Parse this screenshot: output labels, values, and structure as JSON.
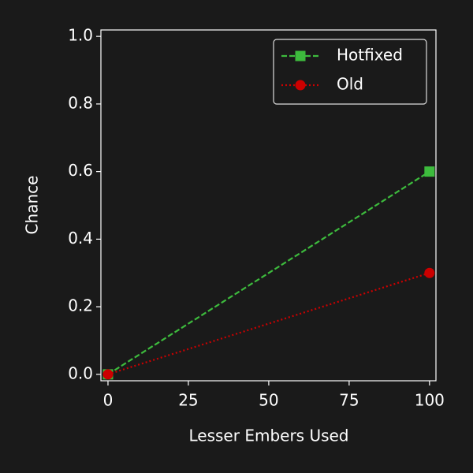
{
  "chart_data": {
    "type": "line",
    "x_label": "Lesser Embers Used",
    "y_label": "Chance",
    "x": [
      0,
      100
    ],
    "series": [
      {
        "name": "Hotfixed",
        "color": "#3dbb3d",
        "marker": "square",
        "linestyle": "dashed",
        "values": [
          0,
          0.6
        ]
      },
      {
        "name": "Old",
        "color": "#cc0000",
        "marker": "circle",
        "linestyle": "dotted",
        "values": [
          0,
          0.3
        ]
      }
    ],
    "xlim": [
      -2.2,
      102
    ],
    "ylim": [
      -0.019,
      1.019
    ],
    "xticks": [
      0,
      25,
      50,
      75,
      100
    ],
    "yticks": [
      {
        "value": 0,
        "label": "0.0"
      },
      0.2,
      0.4,
      0.6,
      0.8,
      {
        "value": 1,
        "label": "1.0"
      }
    ],
    "legend": "upper right",
    "grid": false
  }
}
